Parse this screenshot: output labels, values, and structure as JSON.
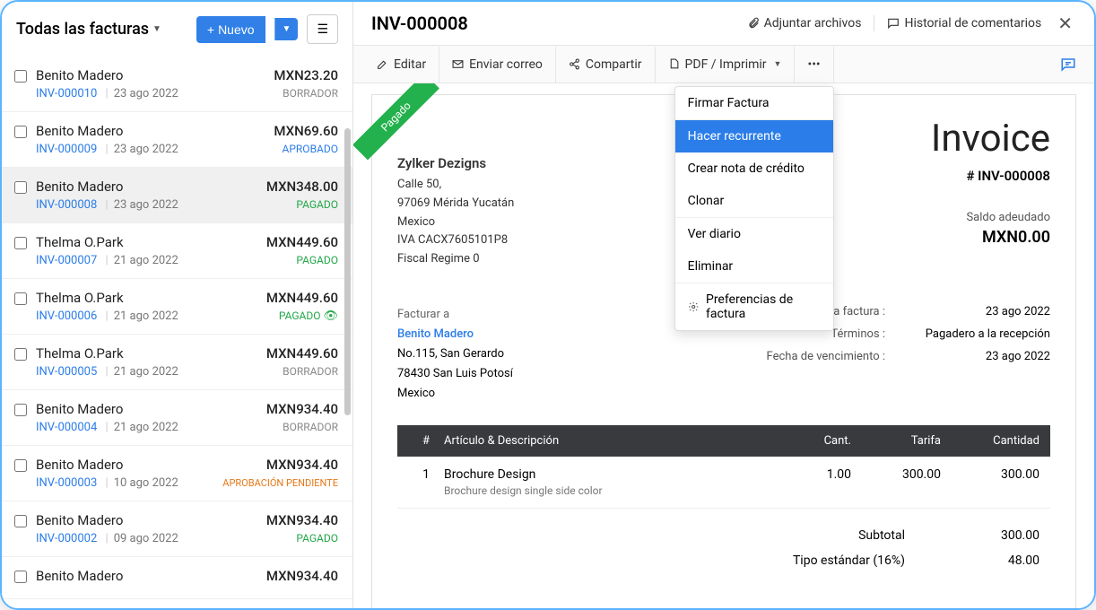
{
  "left": {
    "title": "Todas las facturas",
    "newBtn": "Nuevo"
  },
  "invoices": [
    {
      "name": "Benito Madero",
      "num": "INV-000010",
      "date": "23 ago 2022",
      "amt": "MXN23.20",
      "status": "BORRADOR",
      "cls": "st-borrador"
    },
    {
      "name": "Benito Madero",
      "num": "INV-000009",
      "date": "23 ago 2022",
      "amt": "MXN69.60",
      "status": "APROBADO",
      "cls": "st-aprobado"
    },
    {
      "name": "Benito Madero",
      "num": "INV-000008",
      "date": "23 ago 2022",
      "amt": "MXN348.00",
      "status": "PAGADO",
      "cls": "st-pagado",
      "selected": true
    },
    {
      "name": "Thelma O.Park",
      "num": "INV-000007",
      "date": "21 ago 2022",
      "amt": "MXN449.60",
      "status": "PAGADO",
      "cls": "st-pagado"
    },
    {
      "name": "Thelma O.Park",
      "num": "INV-000006",
      "date": "21 ago 2022",
      "amt": "MXN449.60",
      "status": "PAGADO",
      "cls": "st-pagado",
      "eye": true
    },
    {
      "name": "Thelma O.Park",
      "num": "INV-000005",
      "date": "21 ago 2022",
      "amt": "MXN449.60",
      "status": "BORRADOR",
      "cls": "st-borrador"
    },
    {
      "name": "Benito Madero",
      "num": "INV-000004",
      "date": "21 ago 2022",
      "amt": "MXN934.40",
      "status": "BORRADOR",
      "cls": "st-borrador"
    },
    {
      "name": "Benito Madero",
      "num": "INV-000003",
      "date": "10 ago 2022",
      "amt": "MXN934.40",
      "status": "APROBACIÓN PENDIENTE",
      "cls": "st-pendiente"
    },
    {
      "name": "Benito Madero",
      "num": "INV-000002",
      "date": "09 ago 2022",
      "amt": "MXN934.40",
      "status": "PAGADO",
      "cls": "st-pagado"
    },
    {
      "name": "Benito Madero",
      "num": "",
      "date": "",
      "amt": "MXN934.40",
      "status": "",
      "cls": ""
    }
  ],
  "header": {
    "title": "INV-000008",
    "attach": "Adjuntar archivos",
    "comments": "Historial de comentarios"
  },
  "toolbar": {
    "edit": "Editar",
    "email": "Enviar correo",
    "share": "Compartir",
    "pdf": "PDF / Imprimir"
  },
  "dropdown": {
    "sign": "Firmar Factura",
    "recur": "Hacer recurrente",
    "credit": "Crear nota de crédito",
    "clone": "Clonar",
    "journal": "Ver diario",
    "delete": "Eliminar",
    "prefs": "Preferencias de factura"
  },
  "doc": {
    "ribbon": "Pagado",
    "company": {
      "name": "Zylker Dezigns",
      "l1": "Calle 50,",
      "l2": "97069 Mérida Yucatán",
      "l3": "Mexico",
      "l4": "IVA CACX7605101P8",
      "l5": "Fiscal Regime 0"
    },
    "word": "Invoice",
    "numLbl": "# INV-000008",
    "balLbl": "Saldo adeudado",
    "balAmt": "MXN0.00",
    "bill": {
      "lbl": "Facturar a",
      "name": "Benito Madero",
      "l1": "No.115, San Gerardo",
      "l2": "78430  San Luis Potosí",
      "l3": "Mexico"
    },
    "meta": {
      "dateLbl": "Fecha de la factura :",
      "dateVal": "23 ago 2022",
      "termsLbl": "Términos :",
      "termsVal": "Pagadero a la recepción",
      "dueLbl": "Fecha de vencimiento :",
      "dueVal": "23 ago 2022"
    },
    "head": {
      "n": "#",
      "desc": "Artículo & Descripción",
      "qty": "Cant.",
      "rate": "Tarifa",
      "amt": "Cantidad"
    },
    "item": {
      "n": "1",
      "name": "Brochure Design",
      "sub": "Brochure design single side color",
      "qty": "1.00",
      "rate": "300.00",
      "amt": "300.00"
    },
    "subLbl": "Subtotal",
    "subVal": "300.00",
    "taxLbl": "Tipo estándar (16%)",
    "taxVal": "48.00"
  }
}
